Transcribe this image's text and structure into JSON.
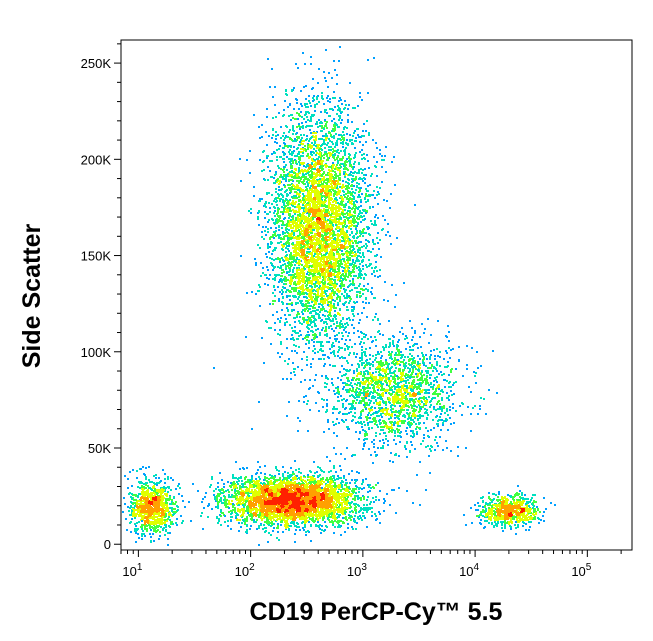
{
  "chart_data": {
    "type": "scatter",
    "xlabel": "CD19 PerCP-Cy™ 5.5",
    "ylabel": "Side Scatter",
    "x_scale": "log",
    "xlim": [
      7,
      250000
    ],
    "ylim": [
      -3000,
      262000
    ],
    "x_ticks": [
      {
        "value": 10,
        "base": "10",
        "exp": "1"
      },
      {
        "value": 100,
        "base": "10",
        "exp": "2"
      },
      {
        "value": 1000,
        "base": "10",
        "exp": "3"
      },
      {
        "value": 10000,
        "base": "10",
        "exp": "4"
      },
      {
        "value": 100000,
        "base": "10",
        "exp": "5"
      }
    ],
    "y_ticks": [
      {
        "value": 0,
        "label": "0"
      },
      {
        "value": 50000,
        "label": "50K"
      },
      {
        "value": 100000,
        "label": "100K"
      },
      {
        "value": 150000,
        "label": "150K"
      },
      {
        "value": 200000,
        "label": "200K"
      },
      {
        "value": 250000,
        "label": "250K"
      }
    ],
    "density_colormap": [
      "#0000ff",
      "#00a0ff",
      "#00e0c0",
      "#40ff40",
      "#e0ff00",
      "#ffa000",
      "#ff2000"
    ],
    "populations": [
      {
        "x_median": 400,
        "y_median": 165000,
        "x_log_sd": 0.22,
        "y_sd": 30000,
        "events": 5200
      },
      {
        "x_median": 1800,
        "y_median": 80000,
        "x_log_sd": 0.28,
        "y_sd": 14000,
        "events": 1800
      },
      {
        "x_median": 230,
        "y_median": 23000,
        "x_log_sd": 0.3,
        "y_sd": 6500,
        "events": 3600
      },
      {
        "x_median": 20000,
        "y_median": 18000,
        "x_log_sd": 0.13,
        "y_sd": 4000,
        "events": 700
      },
      {
        "x_median": 13,
        "y_median": 20000,
        "x_log_sd": 0.1,
        "y_sd": 7000,
        "events": 900
      }
    ]
  }
}
